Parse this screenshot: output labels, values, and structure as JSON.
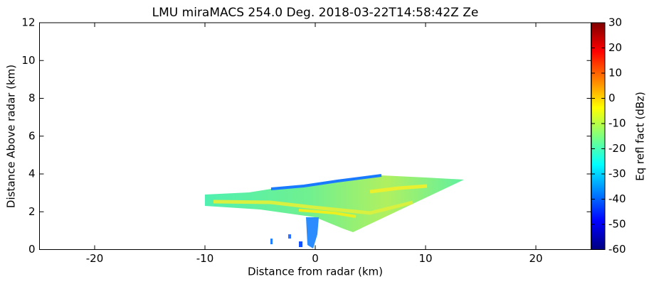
{
  "chart_data": {
    "type": "heatmap",
    "title": "LMU miraMACS 254.0 Deg. 2018-03-22T14:58:42Z  Ze",
    "x_label": "Distance from radar (km)",
    "y_label": "Distance Above radar  (km)",
    "xlim": [
      -25,
      25
    ],
    "xticks": [
      -20,
      -10,
      0,
      10,
      20
    ],
    "ylim": [
      0,
      12
    ],
    "yticks": [
      0,
      2,
      4,
      6,
      8,
      10,
      12
    ],
    "colorbar": {
      "label": "Eq refl fact (dBz)",
      "lim": [
        -60,
        30
      ],
      "ticks": [
        -60,
        -50,
        -40,
        -30,
        -20,
        -10,
        0,
        10,
        20,
        30
      ]
    }
  }
}
